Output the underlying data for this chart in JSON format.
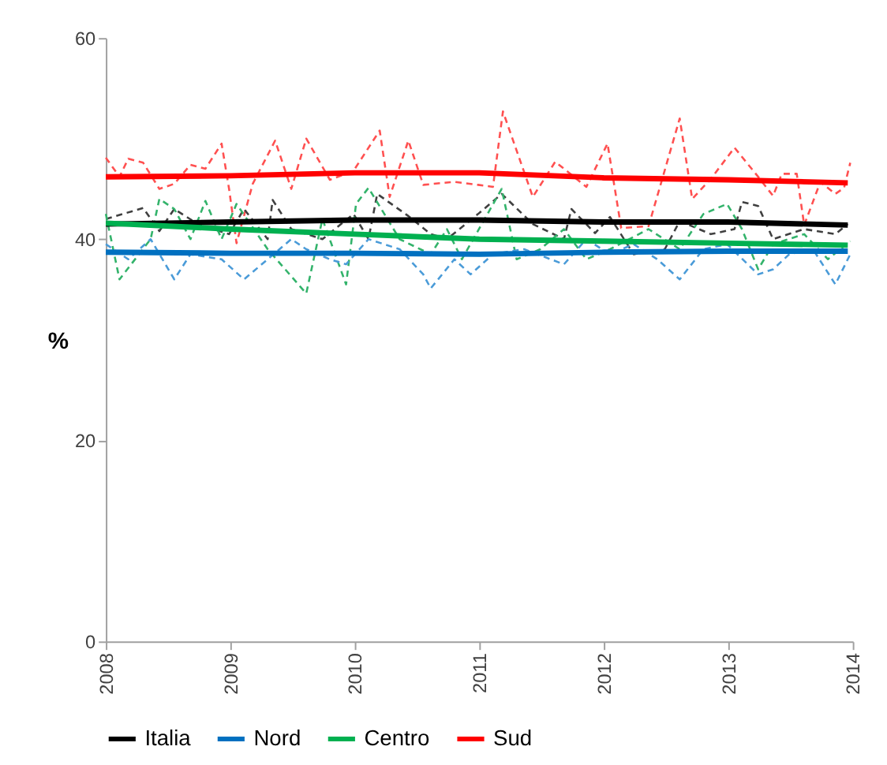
{
  "chart_data": {
    "type": "line",
    "ylabel": "%",
    "xlim": [
      2008,
      2014
    ],
    "ylim": [
      0,
      60
    ],
    "xticks": [
      2008,
      2009,
      2010,
      2011,
      2012,
      2013,
      2014
    ],
    "yticks": [
      0,
      20,
      40,
      60
    ],
    "grid": false,
    "legend": "bottom",
    "marker": "none",
    "series": [
      {
        "color": "#ff5050",
        "line_style": "dashed",
        "x": [
          2008,
          2008.11,
          2008.18,
          2008.3,
          2008.43,
          2008.55,
          2008.68,
          2008.8,
          2008.93,
          2008.99,
          2009.05,
          2009.18,
          2009.36,
          2009.49,
          2009.61,
          2009.8,
          2009.99,
          2010.2,
          2010.28,
          2010.43,
          2010.55,
          2010.8,
          2010.99,
          2011.11,
          2011.19,
          2011.43,
          2011.61,
          2011.86,
          2012.03,
          2012.14,
          2012.36,
          2012.61,
          2012.71,
          2012.86,
          2013.05,
          2013.24,
          2013.36,
          2013.43,
          2013.55,
          2013.61,
          2013.74,
          2013.86,
          2013.93,
          2013.98
        ],
        "values": [
          48.1,
          46.2,
          48.0,
          47.6,
          45.0,
          45.5,
          47.4,
          47.0,
          49.5,
          45.0,
          39.6,
          45.5,
          49.8,
          45.0,
          50.0,
          45.9,
          46.8,
          50.8,
          44.2,
          49.8,
          45.4,
          45.7,
          45.4,
          45.2,
          52.7,
          44.2,
          47.7,
          45.2,
          49.5,
          41.1,
          41.3,
          52.0,
          44.0,
          46.0,
          49.1,
          46.2,
          44.3,
          46.5,
          46.5,
          41.4,
          45.7,
          44.5,
          45.1,
          47.6
        ]
      },
      {
        "color": "#404040",
        "line_style": "dashed",
        "x": [
          2008,
          2008.3,
          2008.43,
          2008.55,
          2008.74,
          2008.99,
          2009.11,
          2009.3,
          2009.34,
          2009.49,
          2009.74,
          2009.99,
          2010.11,
          2010.18,
          2010.43,
          2010.61,
          2010.74,
          2010.99,
          2011.18,
          2011.43,
          2011.68,
          2011.74,
          2011.93,
          2012.05,
          2012.24,
          2012.49,
          2012.61,
          2012.86,
          2013.05,
          2013.11,
          2013.24,
          2013.36,
          2013.61,
          2013.86,
          2013.96
        ],
        "values": [
          42.0,
          43.1,
          40.8,
          43.0,
          41.5,
          40.5,
          43.0,
          40.0,
          43.9,
          41.0,
          40.0,
          42.5,
          40.0,
          44.5,
          42.3,
          40.5,
          40.0,
          42.5,
          44.5,
          41.5,
          40.0,
          43.0,
          40.6,
          42.2,
          38.5,
          39.0,
          41.8,
          40.5,
          41.0,
          43.7,
          43.3,
          40.0,
          41.0,
          40.5,
          41.5
        ]
      },
      {
        "color": "#33b36b",
        "line_style": "dashed",
        "x": [
          2008,
          2008.11,
          2008.36,
          2008.43,
          2008.55,
          2008.68,
          2008.8,
          2008.93,
          2009.05,
          2009.3,
          2009.61,
          2009.74,
          2009.93,
          2010.01,
          2010.11,
          2010.36,
          2010.61,
          2010.74,
          2010.86,
          2011.18,
          2011.3,
          2011.49,
          2011.68,
          2011.86,
          2012.05,
          2012.36,
          2012.61,
          2012.8,
          2012.99,
          2013.11,
          2013.24,
          2013.36,
          2013.61,
          2013.8,
          2013.98
        ],
        "values": [
          42.5,
          36.0,
          40.0,
          44.0,
          43.0,
          40.0,
          43.8,
          40.0,
          43.5,
          39.0,
          34.6,
          42.0,
          35.5,
          43.5,
          45.1,
          40.0,
          38.5,
          41.0,
          38.0,
          45.0,
          38.0,
          39.0,
          41.0,
          38.0,
          39.0,
          41.0,
          39.0,
          42.5,
          43.5,
          41.0,
          37.0,
          39.5,
          40.5,
          38.0,
          39.8
        ]
      },
      {
        "color": "#4a9bd8",
        "line_style": "dashed",
        "x": [
          2008,
          2008.18,
          2008.36,
          2008.55,
          2008.68,
          2008.93,
          2009.11,
          2009.3,
          2009.49,
          2009.61,
          2009.8,
          2009.93,
          2010.11,
          2010.36,
          2010.55,
          2010.61,
          2010.8,
          2010.93,
          2011.11,
          2011.36,
          2011.68,
          2011.86,
          2012.05,
          2012.24,
          2012.43,
          2012.61,
          2012.8,
          2012.99,
          2013.24,
          2013.36,
          2013.49,
          2013.68,
          2013.86,
          2013.98
        ],
        "values": [
          39.5,
          38.0,
          40.0,
          36.0,
          38.5,
          38.0,
          36.0,
          38.0,
          40.0,
          39.0,
          38.0,
          37.5,
          40.0,
          39.0,
          36.5,
          35.1,
          38.0,
          36.5,
          38.5,
          39.0,
          37.5,
          40.0,
          38.5,
          39.5,
          38.0,
          36.0,
          39.0,
          39.5,
          36.5,
          37.0,
          38.5,
          39.0,
          35.5,
          38.5
        ]
      },
      {
        "name": "Italia",
        "color": "#000000",
        "line_style": "solid",
        "x": [
          2008,
          2009,
          2010,
          2011,
          2012,
          2013,
          2013.96
        ],
        "values": [
          41.5,
          41.7,
          41.9,
          41.9,
          41.7,
          41.7,
          41.4
        ]
      },
      {
        "name": "Nord",
        "color": "#0070c0",
        "line_style": "solid",
        "x": [
          2008,
          2009,
          2010,
          2011,
          2012,
          2013,
          2013.96
        ],
        "values": [
          38.7,
          38.6,
          38.6,
          38.5,
          38.7,
          38.8,
          38.8
        ]
      },
      {
        "name": "Centro",
        "color": "#00b050",
        "line_style": "solid",
        "x": [
          2008,
          2009,
          2010,
          2011,
          2012,
          2013,
          2013.96
        ],
        "values": [
          41.6,
          41.0,
          40.5,
          40.0,
          39.8,
          39.6,
          39.4
        ]
      },
      {
        "name": "Sud",
        "color": "#ff0000",
        "line_style": "solid",
        "x": [
          2008,
          2009,
          2010,
          2011,
          2012,
          2013,
          2013.96
        ],
        "values": [
          46.2,
          46.3,
          46.6,
          46.6,
          46.1,
          45.9,
          45.6
        ]
      }
    ]
  }
}
